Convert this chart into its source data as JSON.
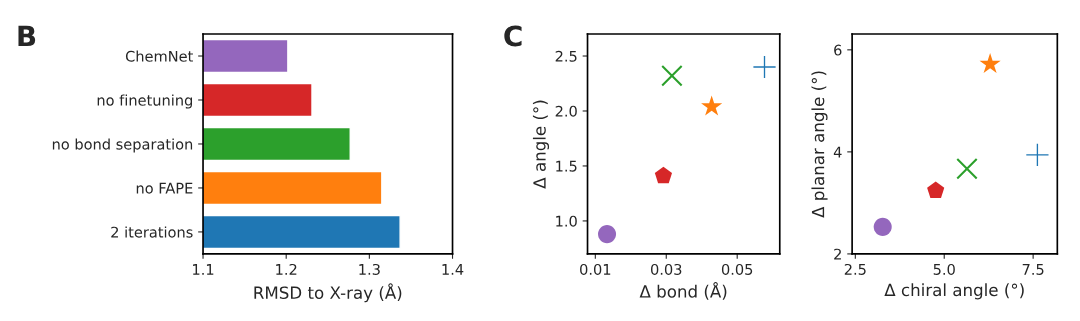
{
  "chart_data": [
    {
      "type": "bar",
      "orientation": "horizontal",
      "xlabel": "RMSD to X-ray (Å)",
      "annotations": [
        "B"
      ],
      "categories": [
        "ChemNet",
        "no finetuning",
        "no bond separation",
        "no FAPE",
        "2 iterations"
      ],
      "values": [
        1.202,
        1.231,
        1.277,
        1.315,
        1.337
      ],
      "colors": [
        "#9467bd",
        "#d62728",
        "#2ca02c",
        "#ff7f0e",
        "#1f77b4"
      ],
      "xlim": [
        1.1,
        1.4
      ],
      "xticks": [
        1.1,
        1.2,
        1.3,
        1.4
      ],
      "grid": false
    },
    {
      "type": "scatter",
      "xlabel": "Δ bond (Å)",
      "ylabel": "Δ angle (°)",
      "annotations": [
        "C"
      ],
      "series": [
        {
          "color": "#9467bd",
          "marker": "circle",
          "x": [
            0.0133
          ],
          "values": [
            0.88
          ]
        },
        {
          "color": "#d62728",
          "x": [
            0.0292
          ],
          "values": [
            1.41
          ]
        },
        {
          "color": "#2ca02c",
          "marker": "x",
          "x": [
            0.0316
          ],
          "values": [
            2.32
          ]
        },
        {
          "color": "#ff7f0e",
          "marker": "star",
          "x": [
            0.0428
          ],
          "values": [
            2.04
          ]
        },
        {
          "color": "#1f77b4",
          "marker": "cross",
          "x": [
            0.0577
          ],
          "values": [
            2.4
          ]
        }
      ],
      "xlim": [
        0.0078,
        0.062
      ],
      "xticks": [
        0.01,
        0.03,
        0.05
      ],
      "ylim": [
        0.7,
        2.7
      ],
      "yticks": [
        {
          "value": 1,
          "label": "1.0"
        },
        1.5,
        {
          "value": 2,
          "label": "2.0"
        },
        2.5
      ],
      "grid": false
    },
    {
      "type": "scatter",
      "xlabel": "Δ chiral angle (°)",
      "ylabel": "Δ planar angle (°)",
      "series": [
        {
          "color": "#9467bd",
          "marker": "circle",
          "x": [
            3.27
          ],
          "values": [
            2.53
          ]
        },
        {
          "color": "#d62728",
          "x": [
            4.76
          ],
          "values": [
            3.24
          ]
        },
        {
          "color": "#2ca02c",
          "marker": "x",
          "x": [
            5.64
          ],
          "values": [
            3.67
          ]
        },
        {
          "color": "#ff7f0e",
          "marker": "star",
          "x": [
            6.29
          ],
          "values": [
            5.72
          ]
        },
        {
          "color": "#1f77b4",
          "marker": "cross",
          "x": [
            7.62
          ],
          "values": [
            3.94
          ]
        }
      ],
      "xlim": [
        2.41,
        8.18
      ],
      "xticks": [
        2.5,
        {
          "value": 5,
          "label": "5.0"
        },
        7.5
      ],
      "ylim": [
        2.0,
        6.31
      ],
      "yticks": [
        2,
        4,
        6
      ],
      "grid": false
    }
  ]
}
